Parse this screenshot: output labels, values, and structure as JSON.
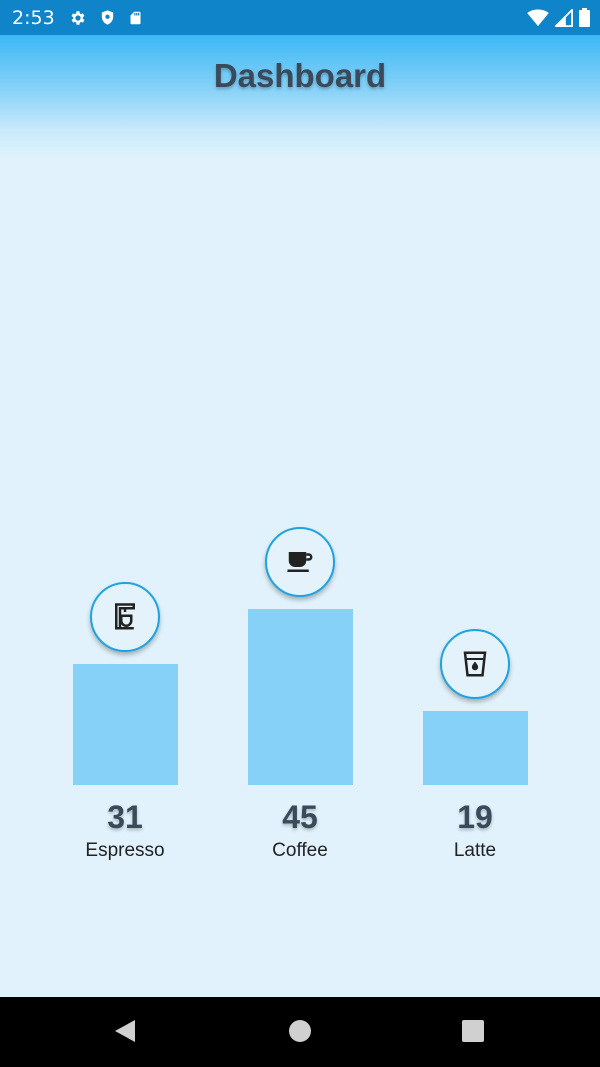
{
  "status_bar": {
    "time": "2:53",
    "left_icons": [
      "gear-icon",
      "shield-icon",
      "sd-card-icon"
    ],
    "right_icons": [
      "wifi-icon",
      "cell-signal-icon",
      "battery-icon"
    ]
  },
  "header": {
    "title": "Dashboard",
    "gradient_top": "#3BB8F5",
    "background": "#E1F2FC"
  },
  "chart_data": {
    "type": "bar",
    "categories": [
      "Espresso",
      "Coffee",
      "Latte"
    ],
    "values": [
      31,
      45,
      19
    ],
    "icons": [
      "coffee-maker-icon",
      "coffee-cup-icon",
      "water-glass-icon"
    ],
    "title": "",
    "xlabel": "",
    "ylabel": "",
    "ylim": [
      0,
      45
    ],
    "grid": false,
    "bar_color": "#85D1F7",
    "icon_border_color": "#1FA3E0"
  },
  "nav_bar": {
    "buttons": [
      "back-icon",
      "home-icon",
      "recents-icon"
    ]
  }
}
